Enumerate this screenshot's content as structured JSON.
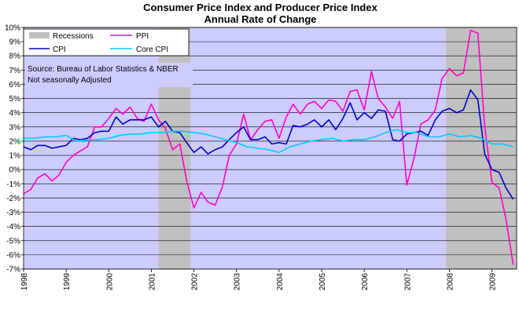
{
  "chart_data": {
    "type": "line",
    "title": "Consumer Price Index and Producer Price Index",
    "subtitle": "Annual Rate of Change",
    "xlabel": "",
    "ylabel": "",
    "xlim": [
      1998.0,
      2009.58
    ],
    "ylim": [
      -7,
      10
    ],
    "y_step": 1,
    "y_unit": "%",
    "x_ticks": [
      "1998",
      "1999",
      "2000",
      "2001",
      "2002",
      "2003",
      "2004",
      "2005",
      "2006",
      "2007",
      "2008",
      "2009"
    ],
    "y_ticks": [
      "10%",
      "9%",
      "8%",
      "7%",
      "6%",
      "5%",
      "4%",
      "3%",
      "2%",
      "1%",
      "0%",
      "-1%",
      "-2%",
      "-3%",
      "-4%",
      "-5%",
      "-6%",
      "-7%"
    ],
    "grid": true,
    "legend_position": "top-left",
    "recessions": {
      "name": "Recessions",
      "periods": [
        [
          2001.17,
          2001.92
        ],
        [
          2007.92,
          2009.58
        ]
      ]
    },
    "notes": [
      "Source: Bureau of Labor Statistics & NBER",
      "Not seasonally Adjusted"
    ],
    "colors": {
      "plot_background": "#ccccff",
      "recession": "#c0c0c0",
      "PPI": "#ff00cc",
      "CPI": "#0000cc",
      "Core CPI": "#00ccff"
    },
    "series": [
      {
        "name": "PPI",
        "x": [
          1998.0,
          1998.17,
          1998.33,
          1998.5,
          1998.67,
          1998.83,
          1999.0,
          1999.17,
          1999.33,
          1999.5,
          1999.67,
          1999.83,
          2000.0,
          2000.17,
          2000.33,
          2000.5,
          2000.67,
          2000.83,
          2001.0,
          2001.17,
          2001.33,
          2001.5,
          2001.67,
          2001.83,
          2002.0,
          2002.17,
          2002.33,
          2002.5,
          2002.67,
          2002.83,
          2003.0,
          2003.17,
          2003.33,
          2003.5,
          2003.67,
          2003.83,
          2004.0,
          2004.17,
          2004.33,
          2004.5,
          2004.67,
          2004.83,
          2005.0,
          2005.17,
          2005.33,
          2005.5,
          2005.67,
          2005.83,
          2006.0,
          2006.17,
          2006.33,
          2006.5,
          2006.67,
          2006.83,
          2007.0,
          2007.17,
          2007.33,
          2007.5,
          2007.67,
          2007.83,
          2008.0,
          2008.17,
          2008.33,
          2008.5,
          2008.67,
          2008.83,
          2009.0,
          2009.17,
          2009.33,
          2009.5
        ],
        "values": [
          -1.7,
          -1.4,
          -0.6,
          -0.3,
          -0.8,
          -0.4,
          0.5,
          1.0,
          1.3,
          1.6,
          3.0,
          3.0,
          3.6,
          4.3,
          3.9,
          4.4,
          3.6,
          3.4,
          4.6,
          3.5,
          2.9,
          1.4,
          1.8,
          -0.8,
          -2.7,
          -1.6,
          -2.3,
          -2.5,
          -1.2,
          1.0,
          1.8,
          3.9,
          2.1,
          2.8,
          3.4,
          3.5,
          2.2,
          3.7,
          4.6,
          3.9,
          4.6,
          4.8,
          4.3,
          4.9,
          4.8,
          4.1,
          5.5,
          5.6,
          4.2,
          6.9,
          5.0,
          4.4,
          3.6,
          4.8,
          -1.1,
          0.8,
          3.2,
          3.5,
          4.2,
          6.4,
          7.1,
          6.6,
          6.8,
          9.8,
          9.6,
          3.0,
          -0.9,
          -1.3,
          -3.5,
          -6.7
        ]
      },
      {
        "name": "CPI",
        "x": [
          1998.0,
          1998.17,
          1998.33,
          1998.5,
          1998.67,
          1998.83,
          1999.0,
          1999.17,
          1999.33,
          1999.5,
          1999.67,
          1999.83,
          2000.0,
          2000.17,
          2000.33,
          2000.5,
          2000.67,
          2000.83,
          2001.0,
          2001.17,
          2001.33,
          2001.5,
          2001.67,
          2001.83,
          2002.0,
          2002.17,
          2002.33,
          2002.5,
          2002.67,
          2002.83,
          2003.0,
          2003.17,
          2003.33,
          2003.5,
          2003.67,
          2003.83,
          2004.0,
          2004.17,
          2004.33,
          2004.5,
          2004.67,
          2004.83,
          2005.0,
          2005.17,
          2005.33,
          2005.5,
          2005.67,
          2005.83,
          2006.0,
          2006.17,
          2006.33,
          2006.5,
          2006.67,
          2006.83,
          2007.0,
          2007.17,
          2007.33,
          2007.5,
          2007.67,
          2007.83,
          2008.0,
          2008.17,
          2008.33,
          2008.5,
          2008.67,
          2008.83,
          2009.0,
          2009.17,
          2009.33,
          2009.5
        ],
        "values": [
          1.6,
          1.4,
          1.7,
          1.7,
          1.5,
          1.6,
          1.7,
          2.2,
          2.1,
          2.2,
          2.6,
          2.7,
          2.7,
          3.7,
          3.2,
          3.5,
          3.5,
          3.5,
          3.7,
          3.0,
          3.4,
          2.7,
          2.6,
          1.9,
          1.2,
          1.6,
          1.1,
          1.4,
          1.6,
          2.1,
          2.6,
          3.0,
          2.1,
          2.1,
          2.3,
          1.8,
          1.9,
          1.8,
          3.1,
          3.0,
          3.2,
          3.5,
          3.0,
          3.5,
          2.8,
          3.6,
          4.7,
          3.5,
          4.0,
          3.6,
          4.2,
          4.1,
          2.1,
          2.0,
          2.5,
          2.6,
          2.7,
          2.4,
          3.5,
          4.1,
          4.3,
          4.0,
          4.2,
          5.6,
          4.9,
          1.1,
          0.0,
          -0.2,
          -1.3,
          -2.1
        ]
      },
      {
        "name": "Core CPI",
        "x": [
          1998.0,
          1998.25,
          1998.5,
          1998.75,
          1999.0,
          1999.25,
          1999.5,
          1999.75,
          2000.0,
          2000.25,
          2000.5,
          2000.75,
          2001.0,
          2001.25,
          2001.5,
          2001.75,
          2002.0,
          2002.25,
          2002.5,
          2002.75,
          2003.0,
          2003.25,
          2003.5,
          2003.75,
          2004.0,
          2004.25,
          2004.5,
          2004.75,
          2005.0,
          2005.25,
          2005.5,
          2005.75,
          2006.0,
          2006.25,
          2006.5,
          2006.75,
          2007.0,
          2007.25,
          2007.5,
          2007.75,
          2008.0,
          2008.25,
          2008.5,
          2008.75,
          2009.0,
          2009.25,
          2009.5
        ],
        "values": [
          2.2,
          2.2,
          2.3,
          2.3,
          2.4,
          2.0,
          2.1,
          2.1,
          2.2,
          2.4,
          2.5,
          2.5,
          2.6,
          2.6,
          2.7,
          2.7,
          2.6,
          2.5,
          2.3,
          2.1,
          1.9,
          1.6,
          1.5,
          1.4,
          1.2,
          1.6,
          1.8,
          2.0,
          2.1,
          2.2,
          2.0,
          2.1,
          2.1,
          2.3,
          2.6,
          2.8,
          2.6,
          2.6,
          2.3,
          2.3,
          2.5,
          2.3,
          2.4,
          2.2,
          1.8,
          1.8,
          1.6
        ]
      }
    ]
  }
}
